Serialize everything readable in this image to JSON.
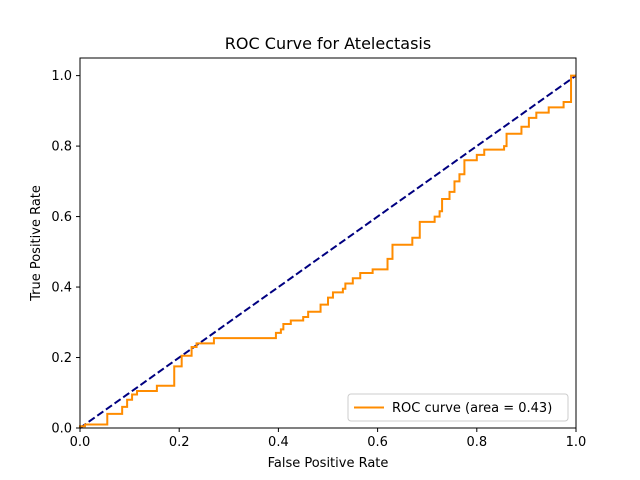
{
  "chart_data": {
    "type": "line",
    "title": "ROC Curve for Atelectasis",
    "xlabel": "False Positive Rate",
    "ylabel": "True Positive Rate",
    "xlim": [
      0.0,
      1.0
    ],
    "ylim": [
      0.0,
      1.05
    ],
    "xticks": [
      "0.0",
      "0.2",
      "0.4",
      "0.6",
      "0.8",
      "1.0"
    ],
    "yticks": [
      "0.0",
      "0.2",
      "0.4",
      "0.6",
      "0.8",
      "1.0"
    ],
    "grid": false,
    "legend_position": "lower-right",
    "series": [
      {
        "name": "ROC curve (area = 0.43)",
        "color": "#ff8c00",
        "linestyle": "solid",
        "x": [
          0.0,
          0.0,
          0.01,
          0.01,
          0.055,
          0.055,
          0.085,
          0.085,
          0.095,
          0.095,
          0.105,
          0.105,
          0.115,
          0.115,
          0.155,
          0.155,
          0.19,
          0.19,
          0.205,
          0.205,
          0.225,
          0.225,
          0.235,
          0.235,
          0.27,
          0.27,
          0.395,
          0.395,
          0.405,
          0.405,
          0.41,
          0.41,
          0.425,
          0.425,
          0.45,
          0.45,
          0.46,
          0.46,
          0.485,
          0.485,
          0.5,
          0.5,
          0.51,
          0.51,
          0.53,
          0.53,
          0.535,
          0.535,
          0.55,
          0.55,
          0.565,
          0.565,
          0.59,
          0.59,
          0.62,
          0.62,
          0.63,
          0.63,
          0.67,
          0.67,
          0.685,
          0.685,
          0.715,
          0.715,
          0.725,
          0.725,
          0.73,
          0.73,
          0.745,
          0.745,
          0.755,
          0.755,
          0.765,
          0.765,
          0.775,
          0.775,
          0.8,
          0.8,
          0.815,
          0.815,
          0.855,
          0.855,
          0.86,
          0.86,
          0.89,
          0.89,
          0.905,
          0.905,
          0.92,
          0.92,
          0.945,
          0.945,
          0.975,
          0.975,
          0.99,
          0.99,
          1.0
        ],
        "y": [
          0.0,
          0.005,
          0.005,
          0.01,
          0.01,
          0.04,
          0.04,
          0.06,
          0.06,
          0.08,
          0.08,
          0.095,
          0.095,
          0.105,
          0.105,
          0.12,
          0.12,
          0.175,
          0.175,
          0.205,
          0.205,
          0.23,
          0.23,
          0.24,
          0.24,
          0.255,
          0.255,
          0.27,
          0.27,
          0.28,
          0.28,
          0.295,
          0.295,
          0.305,
          0.305,
          0.315,
          0.315,
          0.33,
          0.33,
          0.35,
          0.35,
          0.37,
          0.37,
          0.385,
          0.385,
          0.395,
          0.395,
          0.41,
          0.41,
          0.425,
          0.425,
          0.44,
          0.44,
          0.45,
          0.45,
          0.48,
          0.48,
          0.52,
          0.52,
          0.54,
          0.54,
          0.585,
          0.585,
          0.6,
          0.6,
          0.615,
          0.615,
          0.65,
          0.65,
          0.67,
          0.67,
          0.7,
          0.7,
          0.72,
          0.72,
          0.76,
          0.76,
          0.775,
          0.775,
          0.79,
          0.79,
          0.8,
          0.8,
          0.835,
          0.835,
          0.855,
          0.855,
          0.88,
          0.88,
          0.895,
          0.895,
          0.91,
          0.91,
          0.925,
          0.925,
          1.0,
          1.0
        ]
      },
      {
        "color": "#000080",
        "linestyle": "dashed",
        "x": [
          0.0,
          1.0
        ],
        "y": [
          0.0,
          1.0
        ]
      }
    ]
  }
}
